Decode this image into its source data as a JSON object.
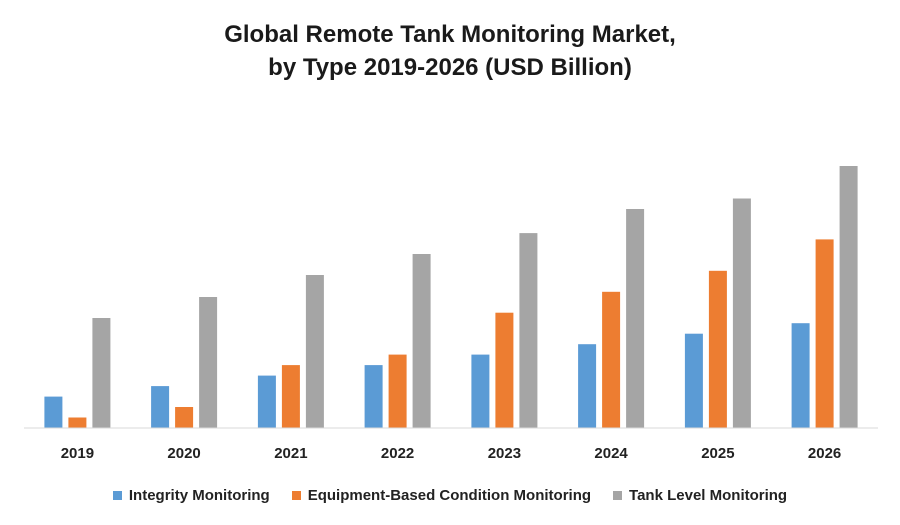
{
  "chart_data": {
    "type": "bar",
    "title": "Global Remote Tank Monitoring Market,",
    "subtitle": "by Type 2019-2026 (USD Billion)",
    "xlabel": "",
    "ylabel": "",
    "grid": false,
    "legend_position": "bottom",
    "ylim": [
      0,
      25
    ],
    "categories": [
      "2019",
      "2020",
      "2021",
      "2022",
      "2023",
      "2024",
      "2025",
      "2026"
    ],
    "series": [
      {
        "name": "Integrity Monitoring",
        "color": "#5b9bd5",
        "values": [
          3.0,
          4.0,
          5.0,
          6.0,
          7.0,
          8.0,
          9.0,
          10.0
        ]
      },
      {
        "name": "Equipment-Based Condition Monitoring",
        "color": "#ed7d31",
        "values": [
          1.0,
          2.0,
          6.0,
          7.0,
          11.0,
          13.0,
          15.0,
          18.0
        ]
      },
      {
        "name": "Tank Level Monitoring",
        "color": "#a5a5a5",
        "values": [
          10.5,
          12.5,
          14.6,
          16.6,
          18.6,
          20.9,
          21.9,
          25.0
        ]
      }
    ]
  }
}
